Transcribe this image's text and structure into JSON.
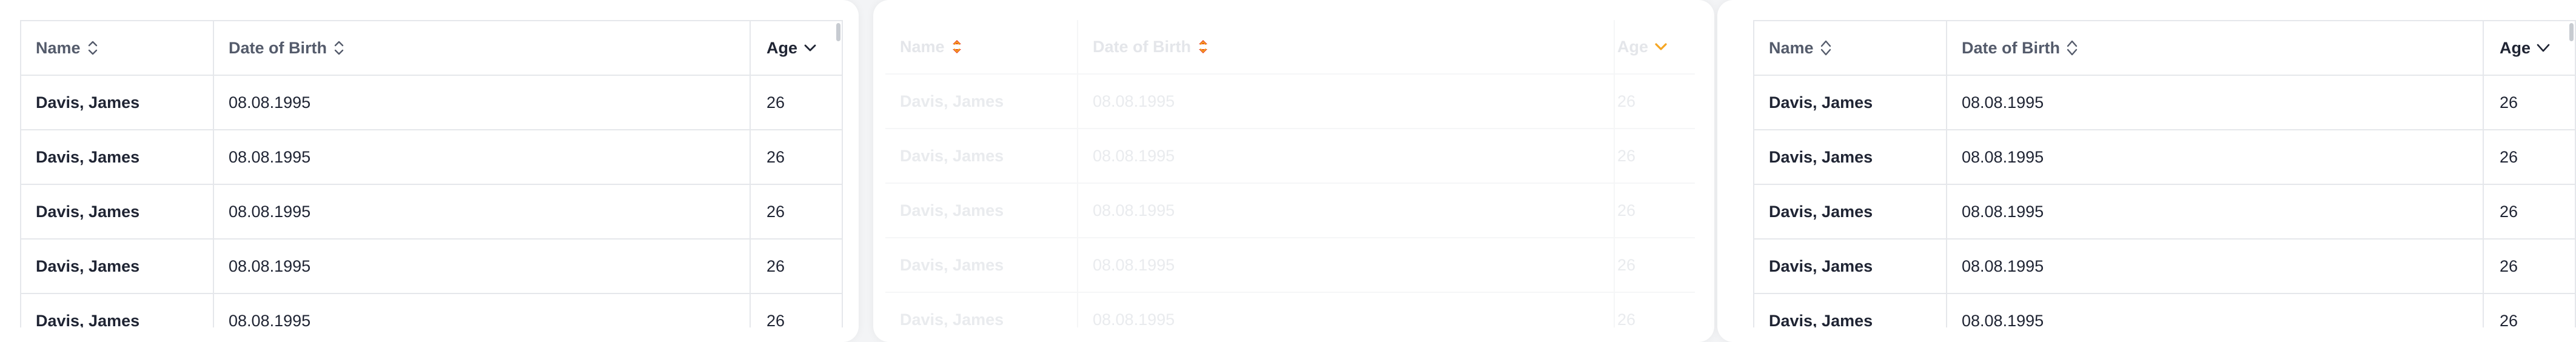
{
  "columns": {
    "name": "Name",
    "dob": "Date of Birth",
    "age": "Age"
  },
  "rows": [
    {
      "name": "Davis, James",
      "dob": "08.08.1995",
      "age": "26"
    },
    {
      "name": "Davis, James",
      "dob": "08.08.1995",
      "age": "26"
    },
    {
      "name": "Davis, James",
      "dob": "08.08.1995",
      "age": "26"
    },
    {
      "name": "Davis, James",
      "dob": "08.08.1995",
      "age": "26"
    },
    {
      "name": "Davis, James",
      "dob": "08.08.1995",
      "age": "26"
    }
  ],
  "icons": {
    "sort": "sort-updown-icon",
    "sorted": "chevron-down-icon"
  },
  "colors": {
    "text": "#1f2433",
    "header_text": "#545b6b",
    "border": "#e5e7eb",
    "accent_red": "#e8431f",
    "accent_orange": "#f5a623"
  }
}
